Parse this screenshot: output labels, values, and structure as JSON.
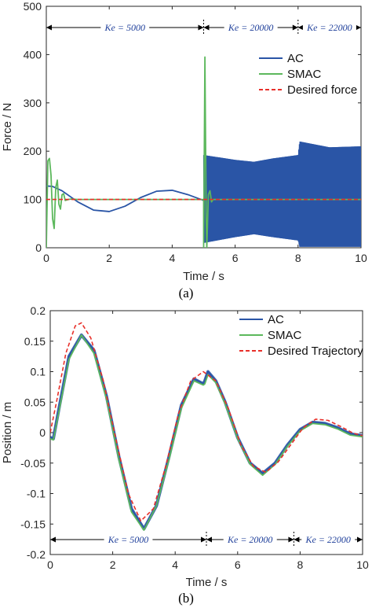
{
  "colors": {
    "ac": "#2a55a6",
    "smac": "#5cb85c",
    "desired": "#e8302a",
    "axis": "#262626",
    "annot": "#1f3f9a"
  },
  "chart_data": [
    {
      "type": "line",
      "caption": "(a)",
      "xlabel": "Time / s",
      "ylabel": "Force / N",
      "xlim": [
        0,
        10
      ],
      "ylim": [
        0,
        500
      ],
      "xticks": [
        "0",
        "2",
        "4",
        "6",
        "8",
        "10"
      ],
      "yticks": [
        "0",
        "100",
        "200",
        "300",
        "400",
        "500"
      ],
      "grid": false,
      "legend_position": "top-right",
      "legend": [
        "AC",
        "SMAC",
        "Desired force"
      ],
      "annotations": [
        {
          "label": "Ke = 5000",
          "from": 0,
          "to": 5
        },
        {
          "label": "Ke = 20000",
          "from": 5,
          "to": 8
        },
        {
          "label": "Ke = 22000",
          "from": 8,
          "to": 10
        }
      ],
      "series": [
        {
          "name": "AC",
          "x": [
            0,
            0.2,
            0.5,
            1.0,
            1.5,
            2.0,
            2.5,
            3.0,
            3.5,
            4.0,
            4.5,
            5.0
          ],
          "y": [
            128,
            127,
            118,
            95,
            78,
            75,
            86,
            104,
            117,
            119,
            110,
            98
          ],
          "oscillation": {
            "x_start": 5.0,
            "x_end": 10.0,
            "upper": [
              [
                5.0,
                192
              ],
              [
                6.0,
                182
              ],
              [
                6.6,
                178
              ],
              [
                7.2,
                185
              ],
              [
                8.0,
                192
              ],
              [
                8.05,
                220
              ],
              [
                9.0,
                208
              ],
              [
                10.0,
                210
              ]
            ],
            "lower": [
              [
                5.0,
                10
              ],
              [
                6.0,
                22
              ],
              [
                6.6,
                28
              ],
              [
                7.2,
                22
              ],
              [
                8.0,
                15
              ],
              [
                8.05,
                2
              ],
              [
                9.0,
                2
              ],
              [
                10.0,
                2
              ]
            ]
          }
        },
        {
          "name": "SMAC",
          "x": [
            0,
            0.05,
            0.1,
            0.15,
            0.2,
            0.25,
            0.3,
            0.35,
            0.4,
            0.45,
            0.5,
            0.55,
            0.6,
            0.7,
            0.8,
            1.0,
            5.0,
            5.0,
            5.04,
            5.08,
            5.1,
            5.15,
            5.2,
            5.25,
            5.3,
            5.4,
            10
          ],
          "y": [
            0,
            180,
            185,
            150,
            60,
            40,
            125,
            140,
            90,
            80,
            110,
            112,
            98,
            100,
            101,
            100,
            100,
            0,
            395,
            60,
            0,
            110,
            118,
            95,
            100,
            100,
            100
          ]
        },
        {
          "name": "Desired force",
          "x": [
            0,
            10
          ],
          "y": [
            100,
            100
          ]
        }
      ]
    },
    {
      "type": "line",
      "caption": "(b)",
      "xlabel": "Time / s",
      "ylabel": "Position / m",
      "xlim": [
        0,
        10
      ],
      "ylim": [
        -0.2,
        0.2
      ],
      "xticks": [
        "0",
        "2",
        "4",
        "6",
        "8",
        "10"
      ],
      "yticks": [
        "0.2",
        "0.15",
        "0.1",
        "0.05",
        "0",
        "-0.05",
        "-0.1",
        "-0.15",
        "-0.2"
      ],
      "grid": false,
      "legend_position": "top-right",
      "legend": [
        "AC",
        "SMAC",
        "Desired Trajectory"
      ],
      "annotations": [
        {
          "label": "Ke = 5000",
          "from": 0,
          "to": 5
        },
        {
          "label": "Ke = 20000",
          "from": 5,
          "to": 7.8
        },
        {
          "label": "Ke = 22000",
          "from": 7.8,
          "to": 10
        }
      ],
      "series": [
        {
          "name": "AC",
          "x": [
            0,
            0.1,
            0.3,
            0.6,
            1.0,
            1.4,
            1.8,
            2.2,
            2.6,
            3.0,
            3.4,
            3.8,
            4.2,
            4.6,
            4.9,
            4.95,
            5.05,
            5.3,
            5.6,
            6.0,
            6.4,
            6.8,
            7.2,
            7.6,
            8.0,
            8.4,
            8.8,
            9.2,
            9.6,
            10.0
          ],
          "y": [
            -0.008,
            -0.01,
            0.045,
            0.125,
            0.16,
            0.135,
            0.06,
            -0.04,
            -0.125,
            -0.158,
            -0.12,
            -0.04,
            0.045,
            0.088,
            0.08,
            0.085,
            0.1,
            0.085,
            0.05,
            -0.008,
            -0.05,
            -0.067,
            -0.05,
            -0.02,
            0.005,
            0.017,
            0.015,
            0.008,
            -0.002,
            -0.005
          ]
        },
        {
          "name": "SMAC",
          "x": [
            0,
            0.1,
            0.3,
            0.6,
            1.0,
            1.4,
            1.8,
            2.2,
            2.6,
            3.0,
            3.4,
            3.8,
            4.2,
            4.6,
            4.9,
            4.95,
            5.05,
            5.3,
            5.6,
            6.0,
            6.4,
            6.8,
            7.2,
            7.6,
            8.0,
            8.4,
            8.8,
            9.2,
            9.6,
            10.0
          ],
          "y": [
            -0.01,
            -0.012,
            0.04,
            0.12,
            0.16,
            0.13,
            0.055,
            -0.045,
            -0.13,
            -0.16,
            -0.12,
            -0.045,
            0.04,
            0.085,
            0.078,
            0.08,
            0.095,
            0.082,
            0.047,
            -0.01,
            -0.052,
            -0.07,
            -0.052,
            -0.022,
            0.003,
            0.015,
            0.013,
            0.006,
            -0.004,
            -0.007
          ]
        },
        {
          "name": "Desired Trajectory",
          "x": [
            0,
            0.2,
            0.5,
            0.8,
            1.0,
            1.3,
            1.7,
            2.1,
            2.5,
            2.9,
            3.3,
            3.7,
            4.1,
            4.5,
            4.9,
            5.3,
            5.7,
            6.1,
            6.5,
            6.9,
            7.3,
            7.7,
            8.1,
            8.5,
            8.9,
            9.3,
            9.7,
            10.0
          ],
          "y": [
            0,
            0.05,
            0.13,
            0.175,
            0.18,
            0.155,
            0.085,
            -0.01,
            -0.1,
            -0.145,
            -0.125,
            -0.055,
            0.03,
            0.085,
            0.1,
            0.085,
            0.04,
            -0.02,
            -0.055,
            -0.065,
            -0.048,
            -0.02,
            0.008,
            0.022,
            0.02,
            0.01,
            -0.001,
            -0.005
          ]
        }
      ]
    }
  ]
}
